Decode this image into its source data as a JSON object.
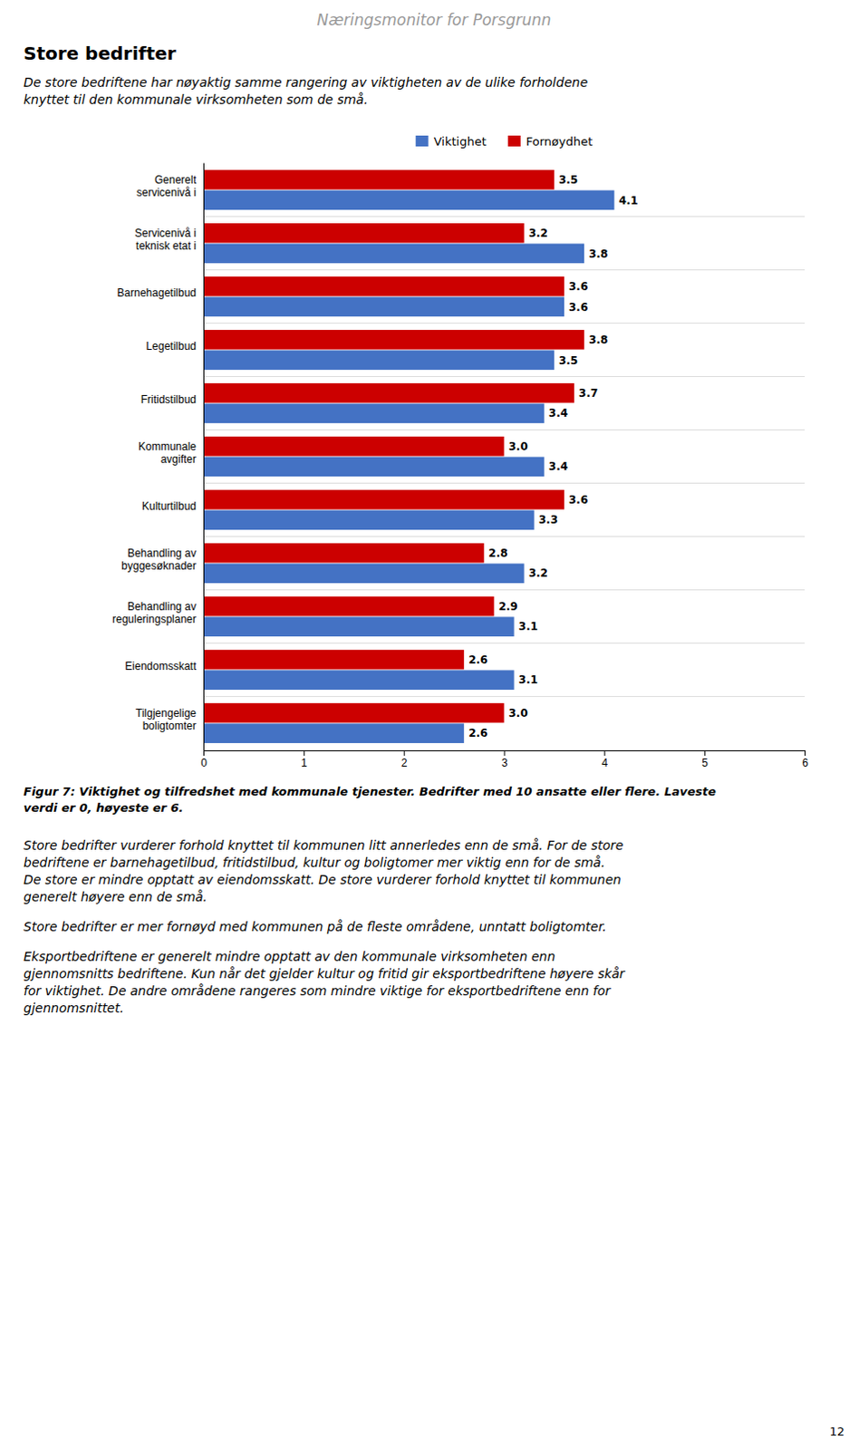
{
  "header": "Næringsmonitor for Porsgrunn",
  "section_title": "Store bedrifter",
  "section_text": "De store bedriftene har nøyaktig samme rangering av viktigheten av de ulike forholdene\nknyttet til den kommunale virksomheten som de små.",
  "footer_texts": [
    "Store bedrifter vurderer forhold knyttet til kommunen litt annerledes enn de små.  For de store\nbedriftene er barnehagetilbud, fritidstilbud, kultur og boligtomer mer viktig enn for de små.\nDe store er mindre opptatt av eiendomsskatt.  De store vurderer forhold knyttet til kommunen\ngenerelt høyere enn de små.",
    "Store bedrifter er mer fornøyd med kommunen på de fleste områdene, unntatt boligtomter.",
    "Eksportbedriftene er generelt mindre opptatt av den kommunale virksomheten enn\ngjennomsnitts bedriftene.  Kun når det gjelder kultur og fritid gir eksportbedriftene høyere skår\nfor viktighet.  De andre områdene rangeres som mindre viktige for eksportbedriftene enn for\ngjennomsnittet."
  ],
  "page_number": "12",
  "chart_data": {
    "type": "bar",
    "orientation": "horizontal",
    "title": "Figur 7: Viktighet og tilfredshet med kommunale tjenester.  Bedrifter med 10 ansatte eller flere. Laveste\nverdi er 0, høyeste er 6.",
    "categories": [
      "Generelt\nservicenivå i",
      "Servicenivå i\nteknisk etat i",
      "Barnehagetilbud",
      "Legetilbud",
      "Fritidstilbud",
      "Kommunale\navgifter",
      "Kulturtilbud",
      "Behandling av\nbyggesøknader",
      "Behandling av\nreguleringsplaner",
      "Eiendomsskatt",
      "Tilgjengelige\nboligtomter"
    ],
    "series": [
      {
        "name": "Viktighet",
        "color": "#4472C4",
        "values": [
          4.1,
          3.8,
          3.6,
          3.5,
          3.4,
          3.4,
          3.3,
          3.2,
          3.1,
          3.1,
          2.6
        ]
      },
      {
        "name": "Fornøydhet",
        "color": "#CC0000",
        "values": [
          3.5,
          3.2,
          3.6,
          3.8,
          3.7,
          3.0,
          3.6,
          2.8,
          2.9,
          2.6,
          3.0
        ],
        "value_labels": [
          "3.5",
          "3.2",
          "3.6",
          "3.8",
          "3.7",
          "3.0",
          "3.6",
          "2.8",
          "2.9",
          "2.6",
          "3.0"
        ]
      }
    ],
    "xlim": [
      0,
      6
    ],
    "xticks": [
      0,
      1,
      2,
      3,
      4,
      5,
      6
    ],
    "grid": false,
    "legend": "top",
    "data_labels": true
  }
}
